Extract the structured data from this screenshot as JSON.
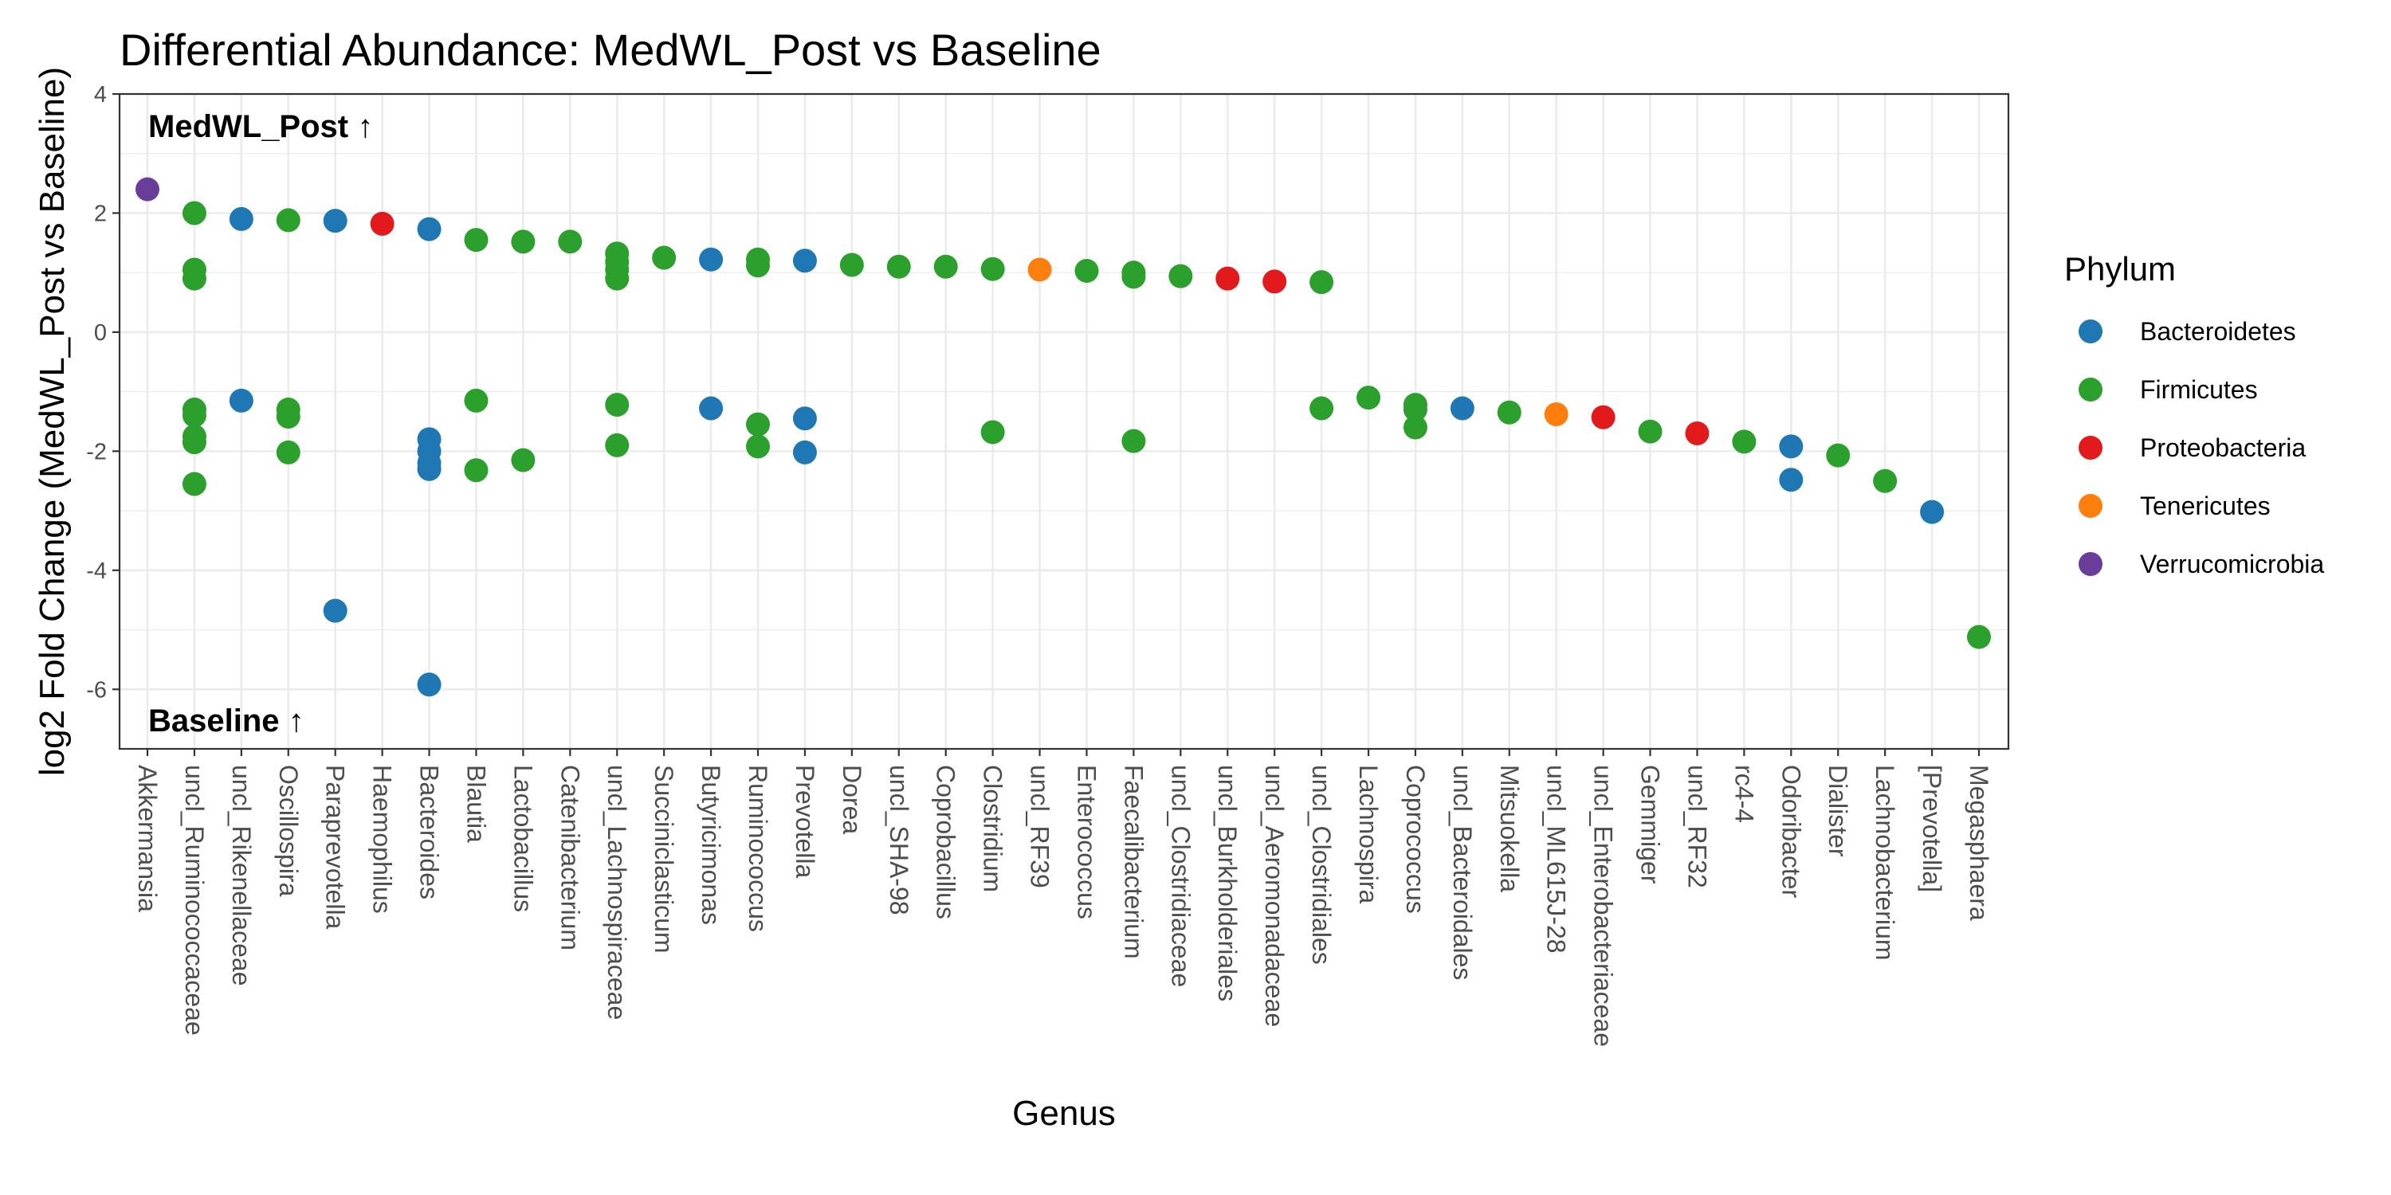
{
  "chart_data": {
    "type": "scatter",
    "title": "Differential Abundance: MedWL_Post vs Baseline",
    "xlabel": "Genus",
    "ylabel": "log2 Fold Change (MedWL_Post vs Baseline)",
    "ylim": [
      -7,
      4
    ],
    "yticks": [
      -6,
      -4,
      -2,
      0,
      2,
      4
    ],
    "grid": true,
    "legend_position": "right",
    "annotations": {
      "top": "MedWL_Post ↑",
      "bottom": "Baseline ↑"
    },
    "legend": {
      "title": "Phylum",
      "entries": [
        {
          "name": "Bacteroidetes",
          "color": "#1f77b4"
        },
        {
          "name": "Firmicutes",
          "color": "#2ca02c"
        },
        {
          "name": "Proteobacteria",
          "color": "#e31a1c"
        },
        {
          "name": "Tenericutes",
          "color": "#ff7f0e"
        },
        {
          "name": "Verrucomicrobia",
          "color": "#6a3d9a"
        }
      ]
    },
    "categories": [
      "Akkermansia",
      "uncl_Ruminococcaceae",
      "uncl_Rikenellaceae",
      "Oscillospira",
      "Paraprevotella",
      "Haemophilus",
      "Bacteroides",
      "Blautia",
      "Lactobacillus",
      "Catenibacterium",
      "uncl_Lachnospiraceae",
      "Succiniclasticum",
      "Butyricimonas",
      "Ruminococcus",
      "Prevotella",
      "Dorea",
      "uncl_SHA-98",
      "Coprobacillus",
      "Clostridium",
      "uncl_RF39",
      "Enterococcus",
      "Faecalibacterium",
      "uncl_Clostridiaceae",
      "uncl_Burkholderiales",
      "uncl_Aeromonadaceae",
      "uncl_Clostridiales",
      "Lachnospira",
      "Coprococcus",
      "uncl_Bacteroidales",
      "Mitsuokella",
      "uncl_ML615J-28",
      "uncl_Enterobacteriaceae",
      "Gemmiger",
      "uncl_RF32",
      "rc4-4",
      "Odoribacter",
      "Dialister",
      "Lachnobacterium",
      "[Prevotella]",
      "Megasphaera"
    ],
    "points": [
      {
        "x": "Akkermansia",
        "y": 2.4,
        "phylum": "Verrucomicrobia"
      },
      {
        "x": "uncl_Ruminococcaceae",
        "y": 2.0,
        "phylum": "Firmicutes"
      },
      {
        "x": "uncl_Ruminococcaceae",
        "y": 1.05,
        "phylum": "Firmicutes"
      },
      {
        "x": "uncl_Ruminococcaceae",
        "y": 0.9,
        "phylum": "Firmicutes"
      },
      {
        "x": "uncl_Ruminococcaceae",
        "y": -1.3,
        "phylum": "Firmicutes"
      },
      {
        "x": "uncl_Ruminococcaceae",
        "y": -1.4,
        "phylum": "Firmicutes"
      },
      {
        "x": "uncl_Ruminococcaceae",
        "y": -1.75,
        "phylum": "Firmicutes"
      },
      {
        "x": "uncl_Ruminococcaceae",
        "y": -1.85,
        "phylum": "Firmicutes"
      },
      {
        "x": "uncl_Ruminococcaceae",
        "y": -2.55,
        "phylum": "Firmicutes"
      },
      {
        "x": "uncl_Rikenellaceae",
        "y": 1.9,
        "phylum": "Bacteroidetes"
      },
      {
        "x": "uncl_Rikenellaceae",
        "y": -1.15,
        "phylum": "Bacteroidetes"
      },
      {
        "x": "Oscillospira",
        "y": 1.88,
        "phylum": "Firmicutes"
      },
      {
        "x": "Oscillospira",
        "y": -1.3,
        "phylum": "Firmicutes"
      },
      {
        "x": "Oscillospira",
        "y": -1.42,
        "phylum": "Firmicutes"
      },
      {
        "x": "Oscillospira",
        "y": -2.02,
        "phylum": "Firmicutes"
      },
      {
        "x": "Paraprevotella",
        "y": 1.87,
        "phylum": "Bacteroidetes"
      },
      {
        "x": "Paraprevotella",
        "y": -4.68,
        "phylum": "Bacteroidetes"
      },
      {
        "x": "Haemophilus",
        "y": 1.82,
        "phylum": "Proteobacteria"
      },
      {
        "x": "Bacteroides",
        "y": 1.73,
        "phylum": "Bacteroidetes"
      },
      {
        "x": "Bacteroides",
        "y": -1.8,
        "phylum": "Bacteroidetes"
      },
      {
        "x": "Bacteroides",
        "y": -2.0,
        "phylum": "Bacteroidetes"
      },
      {
        "x": "Bacteroides",
        "y": -2.2,
        "phylum": "Bacteroidetes"
      },
      {
        "x": "Bacteroides",
        "y": -2.3,
        "phylum": "Bacteroidetes"
      },
      {
        "x": "Bacteroides",
        "y": -5.92,
        "phylum": "Bacteroidetes"
      },
      {
        "x": "Blautia",
        "y": 1.55,
        "phylum": "Firmicutes"
      },
      {
        "x": "Blautia",
        "y": -1.15,
        "phylum": "Firmicutes"
      },
      {
        "x": "Blautia",
        "y": -2.32,
        "phylum": "Firmicutes"
      },
      {
        "x": "Lactobacillus",
        "y": 1.52,
        "phylum": "Firmicutes"
      },
      {
        "x": "Lactobacillus",
        "y": -2.15,
        "phylum": "Firmicutes"
      },
      {
        "x": "Catenibacterium",
        "y": 1.52,
        "phylum": "Firmicutes"
      },
      {
        "x": "uncl_Lachnospiraceae",
        "y": 1.32,
        "phylum": "Firmicutes"
      },
      {
        "x": "uncl_Lachnospiraceae",
        "y": 1.18,
        "phylum": "Firmicutes"
      },
      {
        "x": "uncl_Lachnospiraceae",
        "y": 1.05,
        "phylum": "Firmicutes"
      },
      {
        "x": "uncl_Lachnospiraceae",
        "y": 0.9,
        "phylum": "Firmicutes"
      },
      {
        "x": "uncl_Lachnospiraceae",
        "y": -1.22,
        "phylum": "Firmicutes"
      },
      {
        "x": "uncl_Lachnospiraceae",
        "y": -1.9,
        "phylum": "Firmicutes"
      },
      {
        "x": "Succiniclasticum",
        "y": 1.25,
        "phylum": "Firmicutes"
      },
      {
        "x": "Butyricimonas",
        "y": 1.22,
        "phylum": "Bacteroidetes"
      },
      {
        "x": "Butyricimonas",
        "y": -1.28,
        "phylum": "Bacteroidetes"
      },
      {
        "x": "Ruminococcus",
        "y": 1.22,
        "phylum": "Firmicutes"
      },
      {
        "x": "Ruminococcus",
        "y": 1.12,
        "phylum": "Firmicutes"
      },
      {
        "x": "Ruminococcus",
        "y": -1.55,
        "phylum": "Firmicutes"
      },
      {
        "x": "Ruminococcus",
        "y": -1.92,
        "phylum": "Firmicutes"
      },
      {
        "x": "Prevotella",
        "y": 1.2,
        "phylum": "Bacteroidetes"
      },
      {
        "x": "Prevotella",
        "y": -1.45,
        "phylum": "Bacteroidetes"
      },
      {
        "x": "Prevotella",
        "y": -2.02,
        "phylum": "Bacteroidetes"
      },
      {
        "x": "Dorea",
        "y": 1.13,
        "phylum": "Firmicutes"
      },
      {
        "x": "uncl_SHA-98",
        "y": 1.1,
        "phylum": "Firmicutes"
      },
      {
        "x": "Coprobacillus",
        "y": 1.1,
        "phylum": "Firmicutes"
      },
      {
        "x": "Clostridium",
        "y": 1.06,
        "phylum": "Firmicutes"
      },
      {
        "x": "Clostridium",
        "y": -1.68,
        "phylum": "Firmicutes"
      },
      {
        "x": "uncl_RF39",
        "y": 1.05,
        "phylum": "Tenericutes"
      },
      {
        "x": "Enterococcus",
        "y": 1.03,
        "phylum": "Firmicutes"
      },
      {
        "x": "Faecalibacterium",
        "y": 1.0,
        "phylum": "Firmicutes"
      },
      {
        "x": "Faecalibacterium",
        "y": 0.93,
        "phylum": "Firmicutes"
      },
      {
        "x": "Faecalibacterium",
        "y": -1.83,
        "phylum": "Firmicutes"
      },
      {
        "x": "uncl_Clostridiaceae",
        "y": 0.94,
        "phylum": "Firmicutes"
      },
      {
        "x": "uncl_Burkholderiales",
        "y": 0.9,
        "phylum": "Proteobacteria"
      },
      {
        "x": "uncl_Aeromonadaceae",
        "y": 0.85,
        "phylum": "Proteobacteria"
      },
      {
        "x": "uncl_Clostridiales",
        "y": 0.84,
        "phylum": "Firmicutes"
      },
      {
        "x": "uncl_Clostridiales",
        "y": -1.28,
        "phylum": "Firmicutes"
      },
      {
        "x": "Lachnospira",
        "y": -1.1,
        "phylum": "Firmicutes"
      },
      {
        "x": "Coprococcus",
        "y": -1.22,
        "phylum": "Firmicutes"
      },
      {
        "x": "Coprococcus",
        "y": -1.3,
        "phylum": "Firmicutes"
      },
      {
        "x": "Coprococcus",
        "y": -1.6,
        "phylum": "Firmicutes"
      },
      {
        "x": "uncl_Bacteroidales",
        "y": -1.28,
        "phylum": "Bacteroidetes"
      },
      {
        "x": "Mitsuokella",
        "y": -1.35,
        "phylum": "Firmicutes"
      },
      {
        "x": "uncl_ML615J-28",
        "y": -1.38,
        "phylum": "Tenericutes"
      },
      {
        "x": "uncl_Enterobacteriaceae",
        "y": -1.43,
        "phylum": "Proteobacteria"
      },
      {
        "x": "Gemmiger",
        "y": -1.67,
        "phylum": "Firmicutes"
      },
      {
        "x": "uncl_RF32",
        "y": -1.7,
        "phylum": "Proteobacteria"
      },
      {
        "x": "rc4-4",
        "y": -1.84,
        "phylum": "Firmicutes"
      },
      {
        "x": "Odoribacter",
        "y": -1.92,
        "phylum": "Bacteroidetes"
      },
      {
        "x": "Odoribacter",
        "y": -2.48,
        "phylum": "Bacteroidetes"
      },
      {
        "x": "Dialister",
        "y": -2.07,
        "phylum": "Firmicutes"
      },
      {
        "x": "Lachnobacterium",
        "y": -2.5,
        "phylum": "Firmicutes"
      },
      {
        "x": "[Prevotella]",
        "y": -3.02,
        "phylum": "Bacteroidetes"
      },
      {
        "x": "Megasphaera",
        "y": -5.12,
        "phylum": "Firmicutes"
      }
    ]
  }
}
